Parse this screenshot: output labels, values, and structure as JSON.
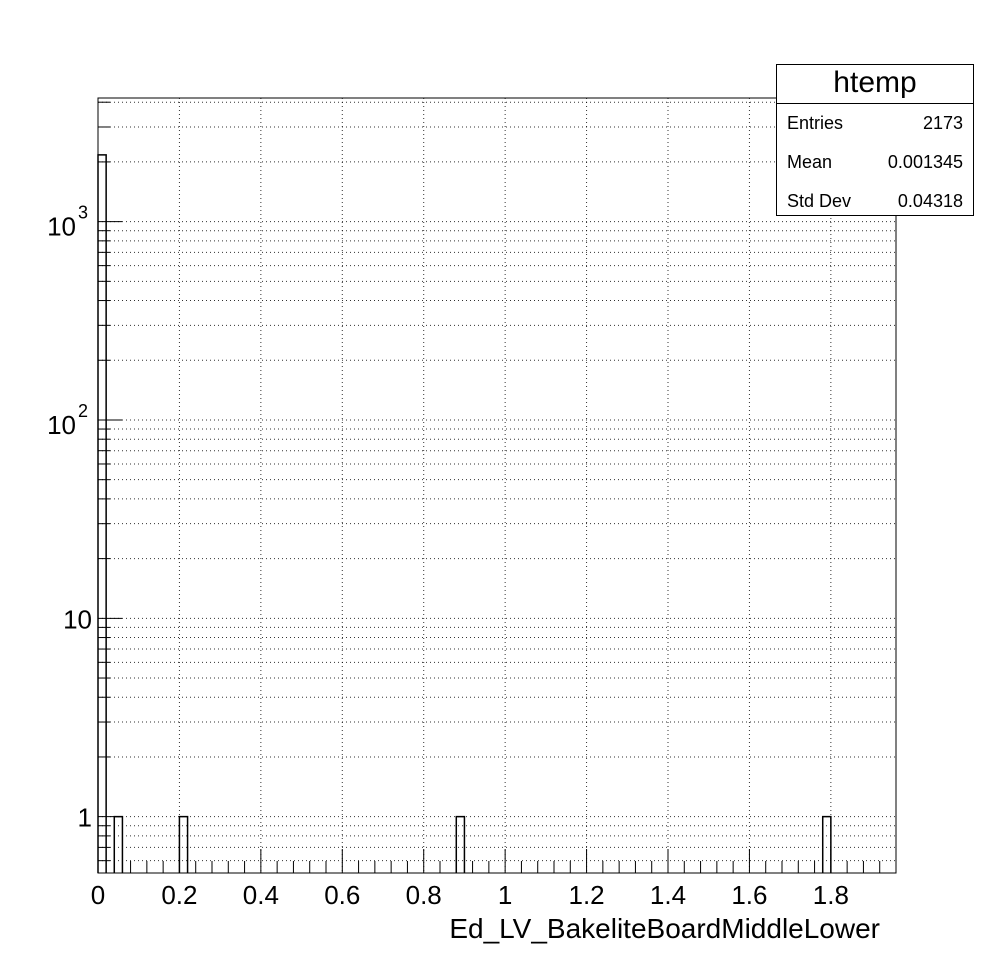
{
  "chart_data": {
    "type": "bar",
    "histogram_name": "htemp",
    "xlabel": "Ed_LV_BakeliteBoardMiddleLower",
    "ylabel": "",
    "xlim": [
      0,
      1.96
    ],
    "ylim": [
      0.52,
      4200
    ],
    "yscale": "log",
    "grid": true,
    "x_tick_labels": [
      "0",
      "0.2",
      "0.4",
      "0.6",
      "0.8",
      "1",
      "1.2",
      "1.4",
      "1.6",
      "1.8"
    ],
    "x_ticks": [
      0,
      0.2,
      0.4,
      0.6,
      0.8,
      1.0,
      1.2,
      1.4,
      1.6,
      1.8
    ],
    "y_ticks": [
      1,
      10,
      100,
      1000
    ],
    "bins": [
      {
        "x0": 0.0,
        "x1": 0.02,
        "count": 2169
      },
      {
        "x0": 0.04,
        "x1": 0.06,
        "count": 1
      },
      {
        "x0": 0.2,
        "x1": 0.22,
        "count": 1
      },
      {
        "x0": 0.88,
        "x1": 0.9,
        "count": 1
      },
      {
        "x0": 1.78,
        "x1": 1.8,
        "count": 1
      }
    ],
    "stats": {
      "title": "htemp",
      "entries_label": "Entries",
      "entries": "2173",
      "mean_label": "Mean",
      "mean": "0.001345",
      "stddev_label": "Std Dev",
      "stddev": "0.04318"
    }
  }
}
